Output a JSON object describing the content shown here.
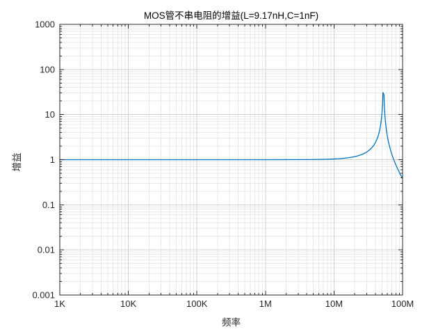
{
  "title": "MOS管不串电阻的增益(L=9.17nH,C=1nF)",
  "colors": {
    "line": "#0072BD",
    "axis": "#262626",
    "tick_text": "#262626",
    "grid_major": "#d0d0d0",
    "grid_minor": "#e8e8e8",
    "background": "#ffffff"
  },
  "chart_data": {
    "type": "line",
    "title": "MOS管不串电阻的增益(L=9.17nH,C=1nF)",
    "xlabel": "频率",
    "ylabel": "增益",
    "x_scale": "log",
    "y_scale": "log",
    "xlim": [
      1000,
      100000000
    ],
    "ylim": [
      0.001,
      1000
    ],
    "x_tick_values": [
      1000,
      10000,
      100000,
      1000000,
      10000000,
      100000000
    ],
    "x_tick_labels": [
      "1K",
      "10K",
      "100K",
      "1M",
      "10M",
      "100M"
    ],
    "y_tick_values": [
      1000,
      100,
      10,
      1,
      0.1,
      0.01,
      0.001
    ],
    "y_tick_labels": [
      "1000",
      "100",
      "10",
      "1",
      "0.1",
      "0.01",
      "0.001"
    ],
    "grid": {
      "major": true,
      "minor": true
    },
    "legend": "none",
    "series": [
      {
        "name": "增益",
        "color": "#0072BD",
        "x": [
          1000,
          10000,
          100000,
          1000000,
          2000000,
          3000000,
          4000000,
          5000000,
          6000000,
          7000000,
          8000000,
          9000000,
          10000000,
          12000000,
          14000000,
          16000000,
          18000000,
          20000000,
          22000000,
          24000000,
          26000000,
          28000000,
          30000000,
          32000000,
          34000000,
          36000000,
          38000000,
          40000000,
          42000000,
          44000000,
          46000000,
          48000000,
          49000000,
          50000000,
          50500000,
          51000000,
          51300000,
          51500000,
          51700000,
          53500000,
          54000000,
          55000000,
          56000000,
          58000000,
          60000000,
          62000000,
          65000000,
          68000000,
          70000000,
          72000000,
          75000000,
          78000000,
          80000000,
          85000000,
          90000000,
          95000000,
          100000000
        ],
        "y": [
          1.0,
          1.0,
          1.0,
          1.0004,
          1.0015,
          1.0033,
          1.0058,
          1.0091,
          1.0132,
          1.0181,
          1.0237,
          1.0303,
          1.0376,
          1.055,
          1.0764,
          1.1022,
          1.133,
          1.1694,
          1.2124,
          1.2632,
          1.3235,
          1.3953,
          1.4833,
          1.589,
          1.7197,
          1.8839,
          2.0953,
          2.3765,
          2.767,
          3.3429,
          4.274,
          6.027,
          7.645,
          10.53,
          13.02,
          17.12,
          21.14,
          25.09,
          30.87,
          27.66,
          17.98,
          10.52,
          7.392,
          4.591,
          3.298,
          2.554,
          1.888,
          1.4835,
          1.2922,
          1.1407,
          0.965,
          0.8316,
          0.7591,
          0.619,
          0.5175,
          0.4411,
          0.3817
        ]
      }
    ]
  }
}
